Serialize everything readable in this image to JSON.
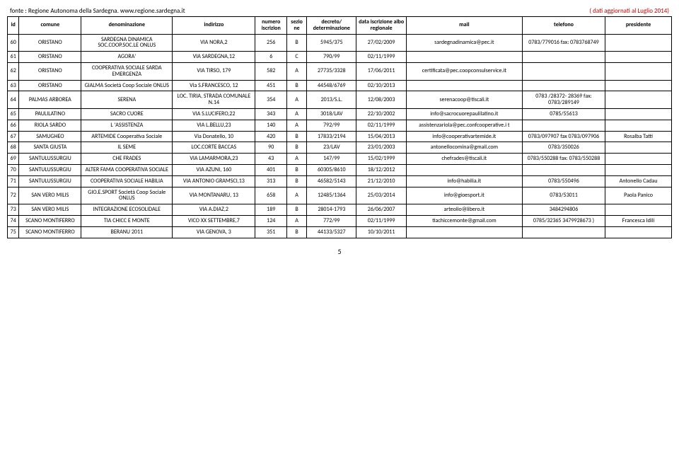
{
  "header": {
    "source": "fonte : Regione Autonoma della Sardegna. www.regione.sardegna.it",
    "updated": "( dati aggiornati al Luglio 2014)"
  },
  "columns": {
    "id": "id",
    "comune": "comune",
    "denominazione": "denominazione",
    "indirizzo": "indirizzo",
    "numero": "numero iscrizion",
    "sezione": "sezio ne",
    "decreto": "decreto/ determinazione",
    "data": "data iscrizione albo regionale",
    "mail": "mail",
    "telefono": "telefono",
    "presidente": "presidente"
  },
  "rows": [
    {
      "id": "60",
      "comune": "ORISTANO",
      "denom": "SARDEGNA DINAMICA SOC.COOP.SOC.LE ONLUS",
      "indir": "VIA NORA,2",
      "num": "256",
      "sez": "B",
      "decr": "5945/375",
      "data": "27/02/2009",
      "mail": "sardegnadinamica@pec.it",
      "tel": "0783/779016 fax: 0783768749",
      "pres": ""
    },
    {
      "id": "61",
      "comune": "ORISTANO",
      "denom": "AGORA'",
      "indir": "VIA SARDEGNA,12",
      "num": "6",
      "sez": "C",
      "decr": "790/99",
      "data": "02/11/1999",
      "mail": "",
      "tel": "",
      "pres": ""
    },
    {
      "id": "62",
      "comune": "ORISTANO",
      "denom": "COOPERATIVA SOCIALE SARDA EMERGENZA",
      "indir": "VIA TIRSO, 179",
      "num": "582",
      "sez": "A",
      "decr": "27735/3328",
      "data": "17/06/2011",
      "mail": "certificata@pec.coopconsulservice.it",
      "tel": "",
      "pres": ""
    },
    {
      "id": "63",
      "comune": "ORISTANO",
      "denom": "GIALMA Società Coop Sociale ONLUS",
      "indir": "Via S.FRANCESCO, 12",
      "num": "451",
      "sez": "B",
      "decr": "44548/6769",
      "data": "02/10/2013",
      "mail": "",
      "tel": "",
      "pres": ""
    },
    {
      "id": "64",
      "comune": "PALMAS ARBOREA",
      "denom": "SERENA",
      "indir": "LOC. TIRIA, STRADA COMUNALE N.14",
      "num": "354",
      "sez": "A",
      "decr": "2013/S.L.",
      "data": "12/08/2003",
      "mail": "serenacoop@tiscali.it",
      "tel": "0783 /28372- 28369 fax: 0783/289149",
      "pres": ""
    },
    {
      "id": "65",
      "comune": "PAULILATINO",
      "denom": "SACRO CUORE",
      "indir": "VIA S.LUCIFERO,22",
      "num": "343",
      "sez": "A",
      "decr": "3018/LAV",
      "data": "22/10/2002",
      "mail": "info@sacrocuorepaulilatino.it",
      "tel": "0785/55613",
      "pres": ""
    },
    {
      "id": "66",
      "comune": "RIOLA SARDO",
      "denom": "L 'ASSISTENZA",
      "indir": "VIA L.BELLU,23",
      "num": "140",
      "sez": "A",
      "decr": "792/99",
      "data": "02/11/1999",
      "mail": "assistenzariola@pec.confcooperative.i t",
      "tel": "",
      "pres": ""
    },
    {
      "id": "67",
      "comune": "SAMUGHEO",
      "denom": "ARTEMIDE Cooperativa Sociale",
      "indir": "Via Donatello, 10",
      "num": "420",
      "sez": "B",
      "decr": "17833/2194",
      "data": "15/04/2013",
      "mail": "info@cooperativartemide.it",
      "tel": "0783/097907 fax 0783/097906",
      "pres": "Rosalba Tatti"
    },
    {
      "id": "68",
      "comune": "SANTA GIUSTA",
      "denom": "IL SEME",
      "indir": "LOC.CORTE BACCAS",
      "num": "90",
      "sez": "B",
      "decr": "23/LAV",
      "data": "23/01/2003",
      "mail": "antonellocomina@gmail.com",
      "tel": "0783/350026",
      "pres": ""
    },
    {
      "id": "69",
      "comune": "SANTULUSSURGIU",
      "denom": "CHE FRADES",
      "indir": "VIA LAMARMORA,23",
      "num": "43",
      "sez": "A",
      "decr": "147/99",
      "data": "15/02/1999",
      "mail": "chefrades@tiscali.it",
      "tel": "0783/550288 fax: 0783/550288",
      "pres": ""
    },
    {
      "id": "70",
      "comune": "SANTULUSSURGIU",
      "denom": "ALTER FAMA COOPERATIVA SOCIALE",
      "indir": "VIA AZUNI, 160",
      "num": "401",
      "sez": "B",
      "decr": "60305/8610",
      "data": "18/12/2012",
      "mail": "",
      "tel": "",
      "pres": ""
    },
    {
      "id": "71",
      "comune": "SANTULUSSURGIU",
      "denom": "COOPERATIVA SOCIALE HABILIA",
      "indir": "VIA ANTONIO GRAMSCI,13",
      "num": "313",
      "sez": "B",
      "decr": "46582/5143",
      "data": "21/12/2010",
      "mail": "info@habilia.it",
      "tel": "0783/550496",
      "pres": "Antonello Cadau"
    },
    {
      "id": "72",
      "comune": "SAN VERO MILIS",
      "denom": "GIO.E.SPORT Società Coop Sociale   ONLUS",
      "indir": "VIA MONTANARU, 13",
      "num": "658",
      "sez": "A",
      "decr": "12485/1364",
      "data": "25/03/2014",
      "mail": "info@gioesport.it",
      "tel": "0783/53011",
      "pres": "Paola Panico"
    },
    {
      "id": "73",
      "comune": "SAN VERO MILIS",
      "denom": "INTEGRAZIONE ECOSOLIDALE",
      "indir": "VIA A.DIAZ,2",
      "num": "189",
      "sez": "B",
      "decr": "28014-1793",
      "data": "26/06/2007",
      "mail": "arteolio@libero.it",
      "tel": "3484294806",
      "pres": ""
    },
    {
      "id": "74",
      "comune": "SCANO MONTIFERRO",
      "denom": "TIA CHICC E MONTE",
      "indir": "VICO XX SETTEMBRE,7",
      "num": "124",
      "sez": "A",
      "decr": "772/99",
      "data": "02/11/1999",
      "mail": "tiachiccemonte@gmail.com",
      "tel": "0785/32365 3479928673 )",
      "pres": "Francesca Idili"
    },
    {
      "id": "75",
      "comune": "SCANO MONTIFERRO",
      "denom": "BERANU 2011",
      "indir": "VIA GENOVA, 3",
      "num": "351",
      "sez": "B",
      "decr": "44133/5327",
      "data": "10/10/2011",
      "mail": "",
      "tel": "",
      "pres": ""
    }
  ],
  "pageNumber": "5"
}
